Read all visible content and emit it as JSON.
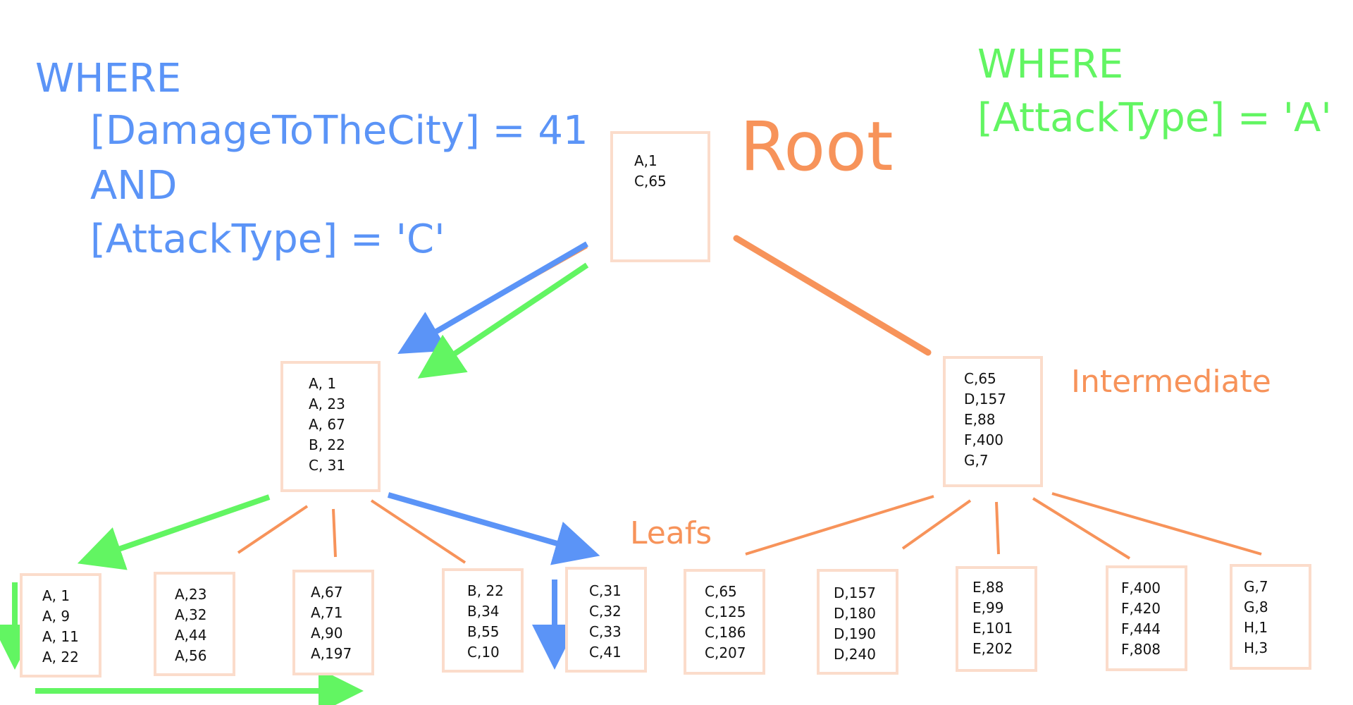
{
  "queries": {
    "blue": {
      "line1": "WHERE",
      "line2": "[DamageToTheCity] =  41",
      "line3": "AND",
      "line4": "[AttackType] = 'C'",
      "color": "#5b94f7"
    },
    "green": {
      "line1": "WHERE",
      "line2": "[AttackType] = 'A'",
      "color": "#62f562"
    }
  },
  "labels": {
    "root": "Root",
    "intermediate": "Intermediate",
    "leafs": "Leafs"
  },
  "colors": {
    "tree": "#f7935a",
    "node_border": "#fbdccb"
  },
  "nodes": {
    "root": [
      "A,1",
      "C,65"
    ],
    "intermediate_left": [
      "A, 1",
      "A, 23",
      "A, 67",
      "B, 22",
      "C, 31"
    ],
    "intermediate_right": [
      "C,65",
      "D,157",
      "E,88",
      "F,400",
      "G,7"
    ],
    "leaves": [
      [
        "A, 1",
        "A, 9",
        "A, 11",
        "A, 22"
      ],
      [
        "A,23",
        "A,32",
        "A,44",
        "A,56"
      ],
      [
        "A,67",
        "A,71",
        "A,90",
        "A,197"
      ],
      [
        "B, 22",
        "B,34",
        "B,55",
        "C,10"
      ],
      [
        "C,31",
        "C,32",
        "C,33",
        "C,41"
      ],
      [
        "C,65",
        "C,125",
        "C,186",
        "C,207"
      ],
      [
        "D,157",
        "D,180",
        "D,190",
        "D,240"
      ],
      [
        "E,88",
        "E,99",
        "E,101",
        "E,202"
      ],
      [
        "F,400",
        "F,420",
        "F,444",
        "F,808"
      ],
      [
        "G,7",
        "G,8",
        "H,1",
        "H,3"
      ]
    ]
  }
}
